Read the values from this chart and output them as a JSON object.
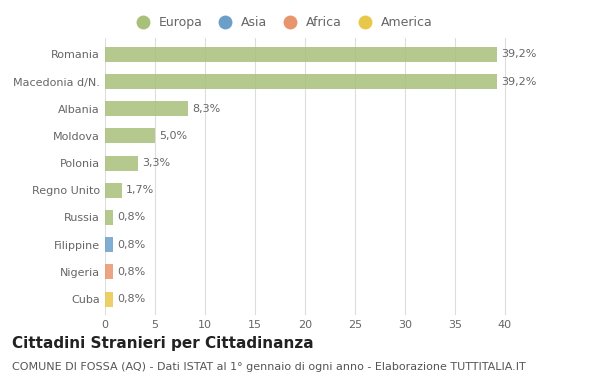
{
  "categories": [
    "Romania",
    "Macedonia d/N.",
    "Albania",
    "Moldova",
    "Polonia",
    "Regno Unito",
    "Russia",
    "Filippine",
    "Nigeria",
    "Cuba"
  ],
  "values": [
    39.2,
    39.2,
    8.3,
    5.0,
    3.3,
    1.7,
    0.8,
    0.8,
    0.8,
    0.8
  ],
  "labels": [
    "39,2%",
    "39,2%",
    "8,3%",
    "5,0%",
    "3,3%",
    "1,7%",
    "0,8%",
    "0,8%",
    "0,8%",
    "0,8%"
  ],
  "colors": [
    "#a8c07a",
    "#a8c07a",
    "#a8c07a",
    "#a8c07a",
    "#a8c07a",
    "#a8c07a",
    "#a8c07a",
    "#6b9fc9",
    "#e8956d",
    "#e8c84a"
  ],
  "legend_labels": [
    "Europa",
    "Asia",
    "Africa",
    "America"
  ],
  "legend_colors": [
    "#a8c07a",
    "#6b9fc9",
    "#e8956d",
    "#e8c84a"
  ],
  "title": "Cittadini Stranieri per Cittadinanza",
  "subtitle": "COMUNE DI FOSSA (AQ) - Dati ISTAT al 1° gennaio di ogni anno - Elaborazione TUTTITALIA.IT",
  "xlim": [
    0,
    42
  ],
  "xticks": [
    0,
    5,
    10,
    15,
    20,
    25,
    30,
    35,
    40
  ],
  "background_color": "#ffffff",
  "grid_color": "#dddddd",
  "bar_height": 0.55,
  "title_fontsize": 11,
  "subtitle_fontsize": 8,
  "label_fontsize": 8,
  "tick_fontsize": 8,
  "legend_fontsize": 9
}
